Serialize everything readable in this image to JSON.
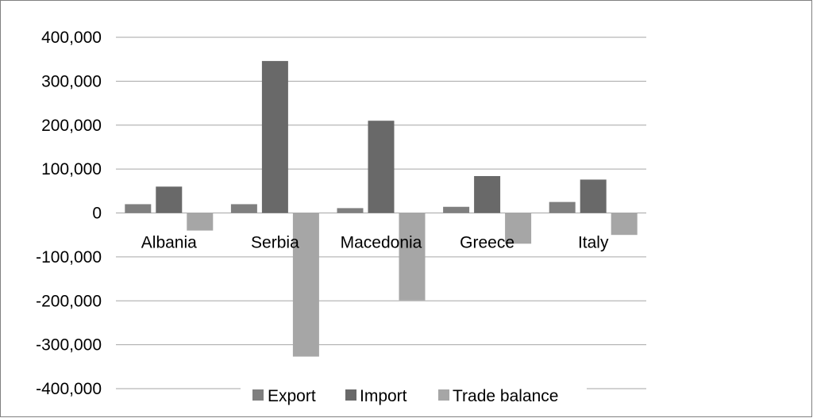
{
  "chart_data": {
    "type": "bar",
    "categories": [
      "Albania",
      "Serbia",
      "Macedonia",
      "Greece",
      "Italy"
    ],
    "series": [
      {
        "name": "Export",
        "values": [
          20000,
          20000,
          11000,
          14000,
          25000
        ],
        "color": "#7f7f7f"
      },
      {
        "name": "Import",
        "values": [
          60000,
          346000,
          210000,
          84000,
          76000
        ],
        "color": "#696969"
      },
      {
        "name": "Trade balance",
        "values": [
          -40000,
          -327000,
          -199000,
          -70000,
          -50000
        ],
        "color": "#a6a6a6"
      }
    ],
    "ylim": [
      -400000,
      400000
    ],
    "yticks": [
      400000,
      300000,
      200000,
      100000,
      0,
      -100000,
      -200000,
      -300000,
      -400000
    ],
    "ytick_labels": [
      "400,000",
      "300,000",
      "200,000",
      "100,000",
      "0",
      "-100,000",
      "-200,000",
      "-300,000",
      "-400,000"
    ],
    "grid": true,
    "legend_position": "bottom",
    "gridline_color": "#a6a6a6"
  }
}
